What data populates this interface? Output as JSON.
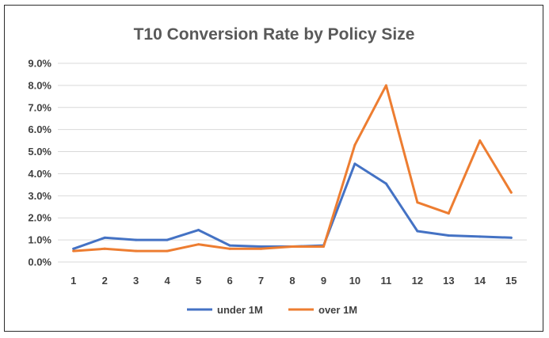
{
  "chart_data": {
    "type": "line",
    "title": "T10 Conversion Rate by Policy Size",
    "xlabel": "",
    "ylabel": "",
    "categories": [
      "1",
      "2",
      "3",
      "4",
      "5",
      "6",
      "7",
      "8",
      "9",
      "10",
      "11",
      "12",
      "13",
      "14",
      "15"
    ],
    "ylim": [
      0,
      9
    ],
    "y_ticks": [
      "0.0%",
      "1.0%",
      "2.0%",
      "3.0%",
      "4.0%",
      "5.0%",
      "6.0%",
      "7.0%",
      "8.0%",
      "9.0%"
    ],
    "grid": "horizontal",
    "legend_position": "bottom",
    "series": [
      {
        "name": "under 1M",
        "color": "#4472c4",
        "values": [
          0.6,
          1.1,
          1.0,
          1.0,
          1.45,
          0.75,
          0.7,
          0.7,
          0.75,
          4.45,
          3.55,
          1.4,
          1.2,
          1.15,
          1.1
        ]
      },
      {
        "name": "over 1M",
        "color": "#ed7d31",
        "values": [
          0.5,
          0.6,
          0.5,
          0.5,
          0.8,
          0.6,
          0.6,
          0.7,
          0.7,
          5.3,
          8.0,
          2.7,
          2.2,
          5.5,
          3.15
        ]
      }
    ]
  }
}
